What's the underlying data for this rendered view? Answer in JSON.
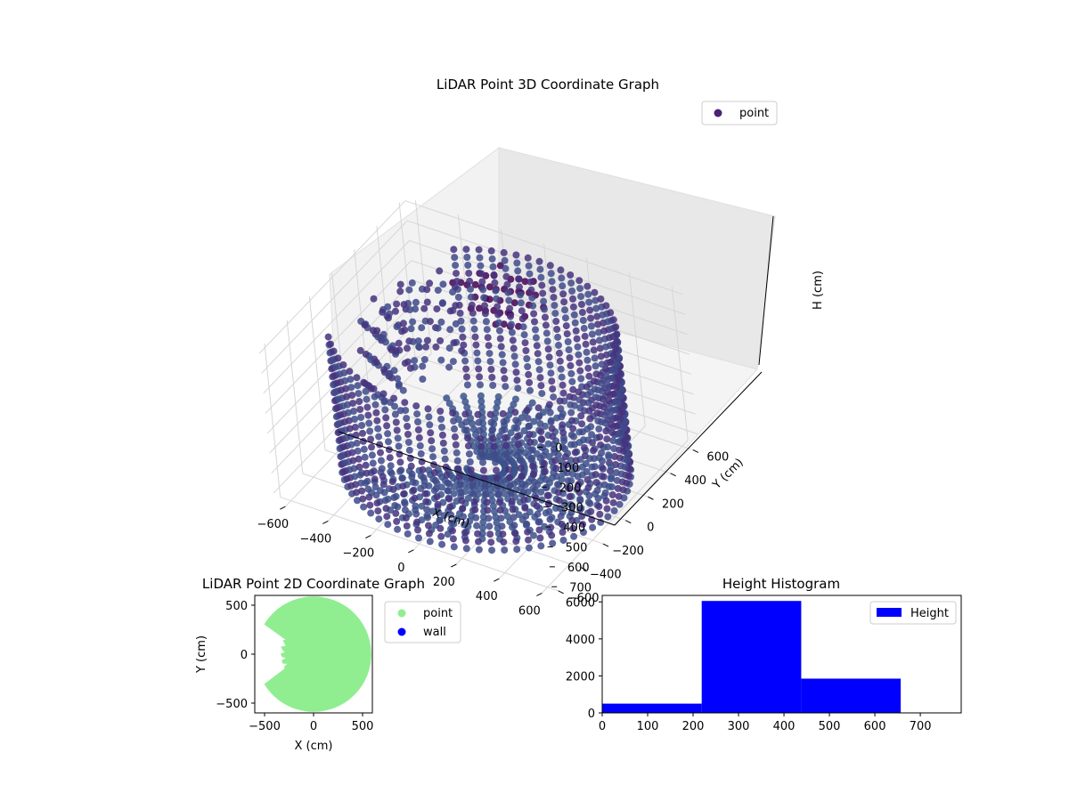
{
  "chart_data": [
    {
      "type": "scatter",
      "projection": "3d",
      "title": "LiDAR Point 3D Coordinate Graph",
      "xlabel": "X (cm)",
      "ylabel": "Y (cm)",
      "zlabel": "H (cm)",
      "xticks": [
        "−600",
        "−400",
        "−200",
        "0",
        "200",
        "400",
        "600"
      ],
      "yticks": [
        "−600",
        "−400",
        "−200",
        "0",
        "200",
        "400",
        "600"
      ],
      "zticks": [
        "0",
        "100",
        "200",
        "300",
        "400",
        "500",
        "600",
        "700"
      ],
      "xlim": [
        -650,
        650
      ],
      "ylim": [
        -650,
        650
      ],
      "zlim": [
        0,
        750
      ],
      "z_inverted": true,
      "legend": [
        {
          "label": "point",
          "color": "#482475"
        }
      ],
      "legend_position": "top-right",
      "colors": {
        "point_dark": "#440154",
        "point_mid": "#472f7d",
        "point_light": "#3b528b"
      },
      "shape": "cylindrical wall of radius ~600 cm, height 0–700 cm, with an opening near the -X side"
    },
    {
      "type": "scatter",
      "title": "LiDAR Point 2D Coordinate Graph",
      "xlabel": "X (cm)",
      "ylabel": "Y (cm)",
      "xticks": [
        "−500",
        "0",
        "500"
      ],
      "yticks": [
        "500",
        "0",
        "−500"
      ],
      "xlim": [
        -600,
        600
      ],
      "ylim": [
        -600,
        600
      ],
      "legend": [
        {
          "label": "point",
          "color": "#90ee90"
        },
        {
          "label": "wall",
          "color": "#0000ff"
        }
      ],
      "legend_position": "right outside"
    },
    {
      "type": "bar",
      "title": "Height Histogram",
      "bins": [
        [
          0,
          219
        ],
        [
          219,
          438
        ],
        [
          438,
          657
        ]
      ],
      "values": [
        500,
        6050,
        1850
      ],
      "xticks": [
        "0",
        "100",
        "200",
        "300",
        "400",
        "500",
        "600",
        "700"
      ],
      "yticks": [
        "0",
        "2000",
        "4000",
        "6000"
      ],
      "xlim": [
        0,
        790
      ],
      "ylim": [
        0,
        6350
      ],
      "legend": [
        {
          "label": "Height",
          "color": "#0000ff"
        }
      ],
      "legend_position": "top-right",
      "bar_color": "#0000ff"
    }
  ]
}
